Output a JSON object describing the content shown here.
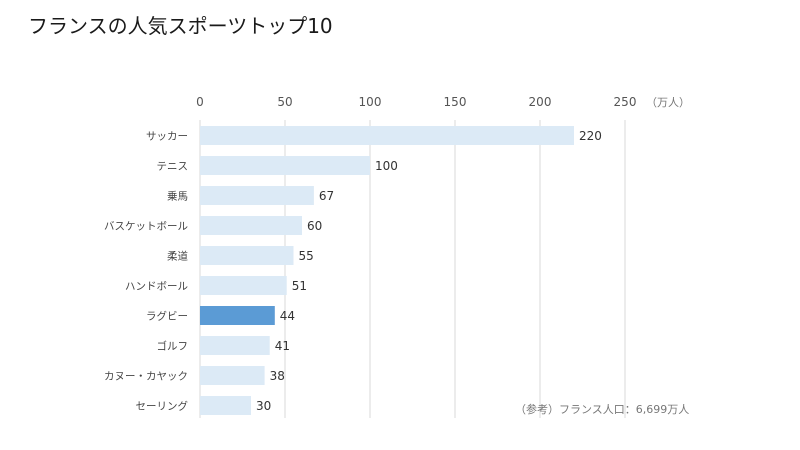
{
  "chart_data": {
    "type": "bar",
    "orientation": "horizontal",
    "title": "フランスの人気スポーツトップ10",
    "unit": "（万人）",
    "categories": [
      "サッカー",
      "テニス",
      "乗馬",
      "バスケットボール",
      "柔道",
      "ハンドボール",
      "ラグビー",
      "ゴルフ",
      "カヌー・カヤック",
      "セーリング"
    ],
    "values": [
      220,
      100,
      67,
      60,
      55,
      51,
      44,
      41,
      38,
      30
    ],
    "highlight_index": 6,
    "xlim": [
      0,
      250
    ],
    "xticks": [
      0,
      50,
      100,
      150,
      200,
      250
    ],
    "grid": true,
    "note": "（参考）フランス人口：6,699万人",
    "colors": {
      "bar": "#dceaf6",
      "highlight": "#5b9bd5",
      "grid": "#d9d9d9"
    }
  }
}
